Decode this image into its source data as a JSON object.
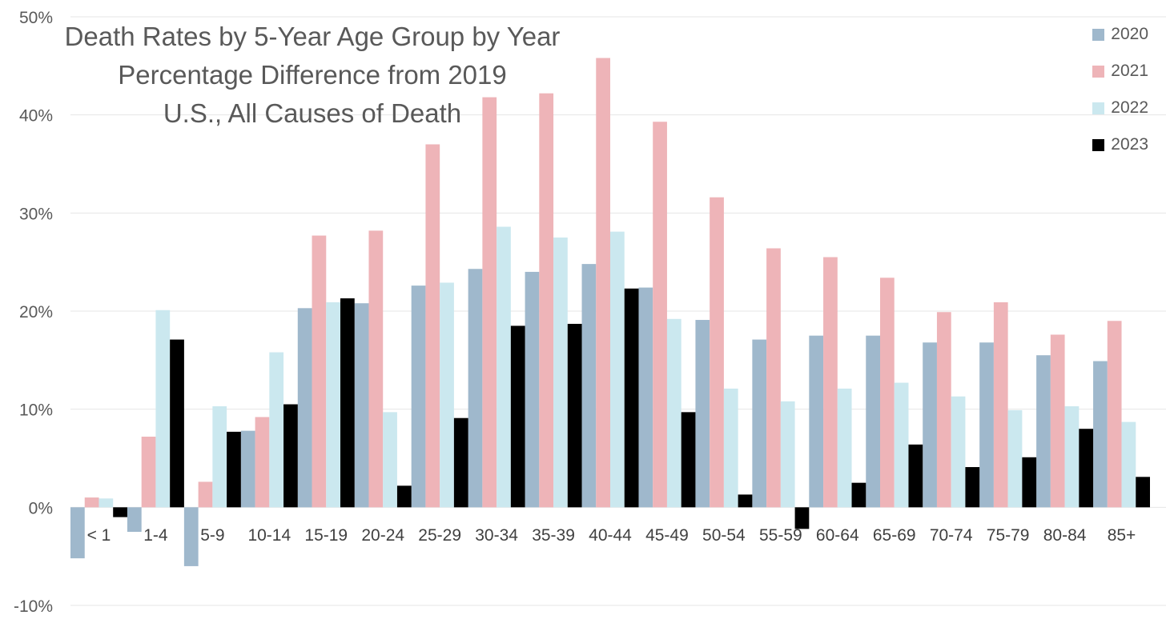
{
  "chart_data": {
    "type": "bar",
    "title": [
      "Death Rates by 5-Year Age Group by Year",
      "Percentage Difference from 2019",
      "U.S., All Causes of Death"
    ],
    "categories": [
      "< 1",
      "1-4",
      "5-9",
      "10-14",
      "15-19",
      "20-24",
      "25-29",
      "30-34",
      "35-39",
      "40-44",
      "45-49",
      "50-54",
      "55-59",
      "60-64",
      "65-69",
      "70-74",
      "75-79",
      "80-84",
      "85+"
    ],
    "series": [
      {
        "name": "2020",
        "color": "#9FB8CC",
        "values": [
          -5.2,
          -2.5,
          -6.0,
          7.8,
          20.3,
          20.8,
          22.6,
          24.3,
          24.0,
          24.8,
          22.4,
          19.1,
          17.1,
          17.5,
          17.5,
          16.8,
          16.8,
          15.5,
          14.9
        ]
      },
      {
        "name": "2021",
        "color": "#EEB4B8",
        "values": [
          1.0,
          7.2,
          2.6,
          9.2,
          27.7,
          28.2,
          37.0,
          41.8,
          42.2,
          45.8,
          39.3,
          31.6,
          26.4,
          25.5,
          23.4,
          19.9,
          20.9,
          17.6,
          19.0
        ]
      },
      {
        "name": "2022",
        "color": "#CBE8EF",
        "values": [
          0.9,
          20.1,
          10.3,
          15.8,
          20.9,
          9.7,
          22.9,
          28.6,
          27.5,
          28.1,
          19.2,
          12.1,
          10.8,
          12.1,
          12.7,
          11.3,
          9.9,
          10.3,
          8.7
        ]
      },
      {
        "name": "2023",
        "color": "#000000",
        "values": [
          -1.0,
          17.1,
          7.7,
          10.5,
          21.3,
          2.2,
          9.1,
          18.5,
          18.7,
          22.3,
          9.7,
          1.3,
          -2.2,
          2.5,
          6.4,
          4.1,
          5.1,
          8.0,
          3.1
        ]
      }
    ],
    "y_ticks": [
      "-10%",
      "0%",
      "10%",
      "20%",
      "30%",
      "40%",
      "50%"
    ],
    "ylim": [
      -10,
      50
    ],
    "grid": true,
    "legend_position": "top-right"
  }
}
